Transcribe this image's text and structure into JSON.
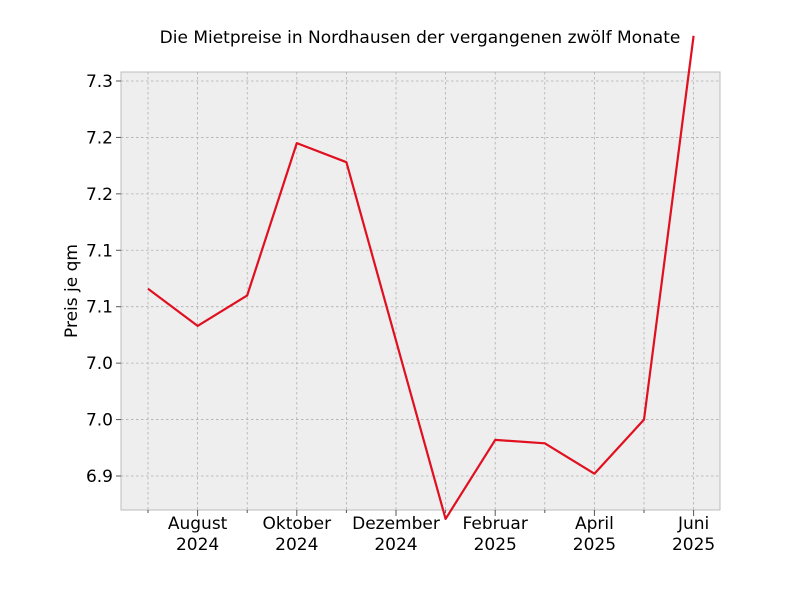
{
  "chart_data": {
    "type": "line",
    "title": "Die Mietpreise in Nordhausen der vergangenen zwölf Monate",
    "xlabel": "",
    "ylabel": "Preis je qm",
    "x": [
      "2024-07",
      "2024-08",
      "2024-09",
      "2024-10",
      "2024-11",
      "2024-12",
      "2025-01",
      "2025-02",
      "2025-03",
      "2025-04",
      "2025-05",
      "2025-06"
    ],
    "series": [
      {
        "values": [
          7.066,
          7.033,
          7.06,
          7.195,
          7.178,
          7.02,
          6.862,
          6.932,
          6.929,
          6.902,
          6.95,
          7.29
        ]
      }
    ],
    "ylim": [
      6.855,
      7.3
    ],
    "yticks": [
      {
        "value": 6.9,
        "label": "6.9"
      },
      {
        "value": 6.95,
        "label": "7.0"
      },
      {
        "value": 7.0,
        "label": "7.0"
      },
      {
        "value": 7.05,
        "label": "7.1"
      },
      {
        "value": 7.1,
        "label": "7.1"
      },
      {
        "value": 7.15,
        "label": "7.2"
      },
      {
        "value": 7.2,
        "label": "7.2"
      },
      {
        "value": 7.25,
        "label": "7.3"
      }
    ],
    "xticks_major": [
      {
        "x": "2024-08",
        "label": [
          "August",
          "2024"
        ]
      },
      {
        "x": "2024-10",
        "label": [
          "Oktober",
          "2024"
        ]
      },
      {
        "x": "2024-12",
        "label": [
          "Dezember",
          "2024"
        ]
      },
      {
        "x": "2025-02",
        "label": [
          "Februar",
          "2025"
        ]
      },
      {
        "x": "2025-04",
        "label": [
          "April",
          "2025"
        ]
      },
      {
        "x": "2025-06",
        "label": [
          "Juni",
          "2025"
        ]
      }
    ],
    "xticks_minor": [
      "2024-07",
      "2024-09",
      "2024-11",
      "2025-01",
      "2025-03",
      "2025-05"
    ],
    "grid": true,
    "colors": {
      "line": "#e01020",
      "background": "#eeeeee",
      "grid": "#b0b0b0"
    }
  }
}
